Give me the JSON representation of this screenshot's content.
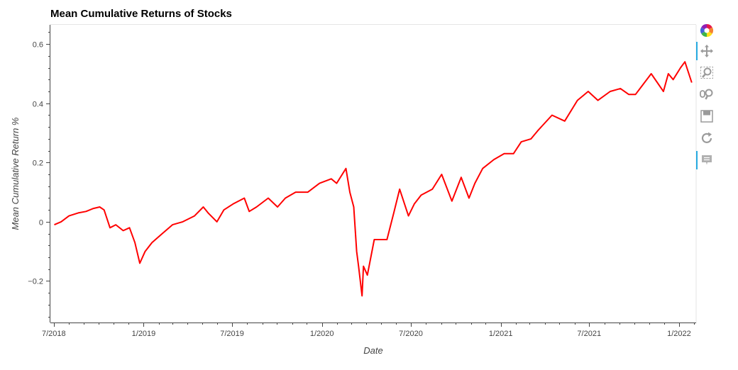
{
  "chart_data": {
    "type": "line",
    "title": "Mean Cumulative Returns of Stocks",
    "xlabel": "Date",
    "ylabel": "Mean Cumulative Return %",
    "x_ticks": [
      "7/2018",
      "1/2019",
      "7/2019",
      "1/2020",
      "7/2020",
      "1/2021",
      "7/2021",
      "1/2022"
    ],
    "y_ticks": [
      -0.2,
      0,
      0.2,
      0.4,
      0.6
    ],
    "y_tick_labels": [
      "−0.2",
      "0",
      "0.2",
      "0.4",
      "0.6"
    ],
    "xlim": [
      "2018-06-24",
      "2022-02-05"
    ],
    "ylim": [
      -0.34,
      0.665
    ],
    "grid": false,
    "series": [
      {
        "color": "#ff0000",
        "points": [
          [
            "2018-07-02",
            -0.01
          ],
          [
            "2018-07-16",
            0.0
          ],
          [
            "2018-08-01",
            0.02
          ],
          [
            "2018-08-20",
            0.03
          ],
          [
            "2018-09-05",
            0.035
          ],
          [
            "2018-09-20",
            0.045
          ],
          [
            "2018-10-03",
            0.05
          ],
          [
            "2018-10-12",
            0.04
          ],
          [
            "2018-10-24",
            -0.02
          ],
          [
            "2018-11-05",
            -0.01
          ],
          [
            "2018-11-20",
            -0.03
          ],
          [
            "2018-12-03",
            -0.02
          ],
          [
            "2018-12-14",
            -0.07
          ],
          [
            "2018-12-24",
            -0.14
          ],
          [
            "2019-01-04",
            -0.1
          ],
          [
            "2019-01-18",
            -0.07
          ],
          [
            "2019-02-08",
            -0.04
          ],
          [
            "2019-03-01",
            -0.01
          ],
          [
            "2019-03-22",
            0.0
          ],
          [
            "2019-04-15",
            0.02
          ],
          [
            "2019-05-03",
            0.05
          ],
          [
            "2019-05-13",
            0.03
          ],
          [
            "2019-05-31",
            0.0
          ],
          [
            "2019-06-14",
            0.04
          ],
          [
            "2019-07-03",
            0.06
          ],
          [
            "2019-07-26",
            0.08
          ],
          [
            "2019-08-05",
            0.035
          ],
          [
            "2019-08-20",
            0.05
          ],
          [
            "2019-09-13",
            0.08
          ],
          [
            "2019-10-02",
            0.05
          ],
          [
            "2019-10-18",
            0.08
          ],
          [
            "2019-11-08",
            0.1
          ],
          [
            "2019-12-03",
            0.1
          ],
          [
            "2019-12-27",
            0.13
          ],
          [
            "2020-01-20",
            0.145
          ],
          [
            "2020-01-31",
            0.13
          ],
          [
            "2020-02-19",
            0.18
          ],
          [
            "2020-02-27",
            0.1
          ],
          [
            "2020-03-06",
            0.05
          ],
          [
            "2020-03-12",
            -0.1
          ],
          [
            "2020-03-16",
            -0.15
          ],
          [
            "2020-03-23",
            -0.25
          ],
          [
            "2020-03-26",
            -0.15
          ],
          [
            "2020-04-03",
            -0.18
          ],
          [
            "2020-04-17",
            -0.06
          ],
          [
            "2020-05-01",
            -0.06
          ],
          [
            "2020-05-13",
            -0.06
          ],
          [
            "2020-05-27",
            0.03
          ],
          [
            "2020-06-08",
            0.11
          ],
          [
            "2020-06-26",
            0.02
          ],
          [
            "2020-07-08",
            0.06
          ],
          [
            "2020-07-22",
            0.09
          ],
          [
            "2020-08-14",
            0.11
          ],
          [
            "2020-09-02",
            0.16
          ],
          [
            "2020-09-23",
            0.07
          ],
          [
            "2020-10-12",
            0.15
          ],
          [
            "2020-10-28",
            0.08
          ],
          [
            "2020-11-09",
            0.13
          ],
          [
            "2020-11-25",
            0.18
          ],
          [
            "2020-12-18",
            0.21
          ],
          [
            "2021-01-08",
            0.23
          ],
          [
            "2021-01-27",
            0.23
          ],
          [
            "2021-02-12",
            0.27
          ],
          [
            "2021-03-04",
            0.28
          ],
          [
            "2021-03-19",
            0.31
          ],
          [
            "2021-04-16",
            0.36
          ],
          [
            "2021-05-12",
            0.34
          ],
          [
            "2021-06-07",
            0.41
          ],
          [
            "2021-06-29",
            0.44
          ],
          [
            "2021-07-19",
            0.41
          ],
          [
            "2021-08-13",
            0.44
          ],
          [
            "2021-09-03",
            0.45
          ],
          [
            "2021-09-20",
            0.43
          ],
          [
            "2021-10-04",
            0.43
          ],
          [
            "2021-11-05",
            0.5
          ],
          [
            "2021-11-30",
            0.44
          ],
          [
            "2021-12-10",
            0.5
          ],
          [
            "2021-12-20",
            0.48
          ],
          [
            "2022-01-04",
            0.52
          ],
          [
            "2022-01-13",
            0.54
          ],
          [
            "2022-01-27",
            0.47
          ]
        ]
      }
    ]
  },
  "toolbar": {
    "tools": [
      {
        "name": "bokeh-logo-icon",
        "label": "Bokeh"
      },
      {
        "name": "pan-icon",
        "label": "Pan"
      },
      {
        "name": "box-zoom-icon",
        "label": "Box Zoom"
      },
      {
        "name": "wheel-zoom-icon",
        "label": "Wheel Zoom"
      },
      {
        "name": "save-icon",
        "label": "Save"
      },
      {
        "name": "reset-icon",
        "label": "Reset"
      },
      {
        "name": "hover-icon",
        "label": "Hover"
      }
    ],
    "accent_color": "#26aae1"
  }
}
